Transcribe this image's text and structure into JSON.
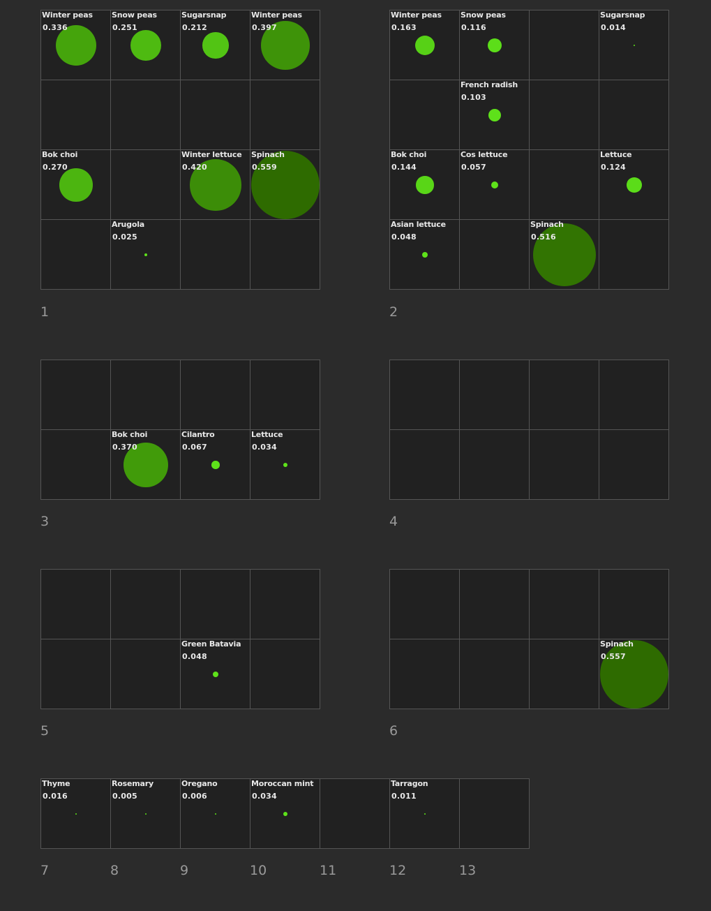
{
  "groups": [
    {
      "label": "1",
      "cols": 4,
      "rows": 4,
      "cells": [
        {
          "row": 0,
          "col": 0,
          "name": "Winter peas",
          "value": "0.336"
        },
        {
          "row": 0,
          "col": 1,
          "name": "Snow peas",
          "value": "0.251"
        },
        {
          "row": 0,
          "col": 2,
          "name": "Sugarsnap",
          "value": "0.212"
        },
        {
          "row": 0,
          "col": 3,
          "name": "Winter peas",
          "value": "0.397"
        },
        {
          "row": 2,
          "col": 0,
          "name": "Bok choi",
          "value": "0.270"
        },
        {
          "row": 2,
          "col": 2,
          "name": "Winter lettuce",
          "value": "0.420"
        },
        {
          "row": 2,
          "col": 3,
          "name": "Spinach",
          "value": "0.559"
        },
        {
          "row": 3,
          "col": 1,
          "name": "Arugola",
          "value": "0.025"
        }
      ]
    },
    {
      "label": "2",
      "cols": 4,
      "rows": 4,
      "cells": [
        {
          "row": 0,
          "col": 0,
          "name": "Winter peas",
          "value": "0.163"
        },
        {
          "row": 0,
          "col": 1,
          "name": "Snow peas",
          "value": "0.116"
        },
        {
          "row": 0,
          "col": 3,
          "name": "Sugarsnap",
          "value": "0.014"
        },
        {
          "row": 1,
          "col": 1,
          "name": "French radish",
          "value": "0.103"
        },
        {
          "row": 2,
          "col": 0,
          "name": "Bok choi",
          "value": "0.144"
        },
        {
          "row": 2,
          "col": 1,
          "name": "Cos lettuce",
          "value": "0.057"
        },
        {
          "row": 2,
          "col": 3,
          "name": "Lettuce",
          "value": "0.124"
        },
        {
          "row": 3,
          "col": 0,
          "name": "Asian lettuce",
          "value": "0.048"
        },
        {
          "row": 3,
          "col": 2,
          "name": "Spinach",
          "value": "0.516"
        }
      ]
    },
    {
      "label": "3",
      "cols": 4,
      "rows": 2,
      "cells": [
        {
          "row": 1,
          "col": 1,
          "name": "Bok choi",
          "value": "0.370"
        },
        {
          "row": 1,
          "col": 2,
          "name": "Cilantro",
          "value": "0.067"
        },
        {
          "row": 1,
          "col": 3,
          "name": "Lettuce",
          "value": "0.034"
        }
      ]
    },
    {
      "label": "4",
      "cols": 4,
      "rows": 2,
      "cells": []
    },
    {
      "label": "5",
      "cols": 4,
      "rows": 2,
      "cells": [
        {
          "row": 1,
          "col": 2,
          "name": "Green Batavia",
          "value": "0.048"
        }
      ]
    },
    {
      "label": "6",
      "cols": 4,
      "rows": 2,
      "cells": [
        {
          "row": 1,
          "col": 3,
          "name": "Spinach",
          "value": "0.557"
        }
      ]
    },
    {
      "label": "7",
      "cols": 1,
      "rows": 1,
      "cells": [
        {
          "row": 0,
          "col": 0,
          "name": "Thyme",
          "value": "0.016"
        }
      ]
    },
    {
      "label": "8",
      "cols": 1,
      "rows": 1,
      "cells": [
        {
          "row": 0,
          "col": 0,
          "name": "Rosemary",
          "value": "0.005"
        }
      ]
    },
    {
      "label": "9",
      "cols": 1,
      "rows": 1,
      "cells": [
        {
          "row": 0,
          "col": 0,
          "name": "Oregano",
          "value": "0.006"
        }
      ]
    },
    {
      "label": "10",
      "cols": 1,
      "rows": 1,
      "cells": [
        {
          "row": 0,
          "col": 0,
          "name": "Moroccan mint",
          "value": "0.034"
        }
      ]
    },
    {
      "label": "11",
      "cols": 1,
      "rows": 1,
      "cells": []
    },
    {
      "label": "12",
      "cols": 1,
      "rows": 1,
      "cells": [
        {
          "row": 0,
          "col": 0,
          "name": "Tarragon",
          "value": "0.011"
        }
      ]
    },
    {
      "label": "13",
      "cols": 1,
      "rows": 1,
      "cells": []
    }
  ],
  "colors": {
    "background": "#2b2b2b",
    "cell": "#212121",
    "border": "#555555",
    "text": "#e8e8e8",
    "group_label": "#9a9a9a",
    "bubble_small": "#5ee21a",
    "bubble_large": "#2e6b00"
  }
}
